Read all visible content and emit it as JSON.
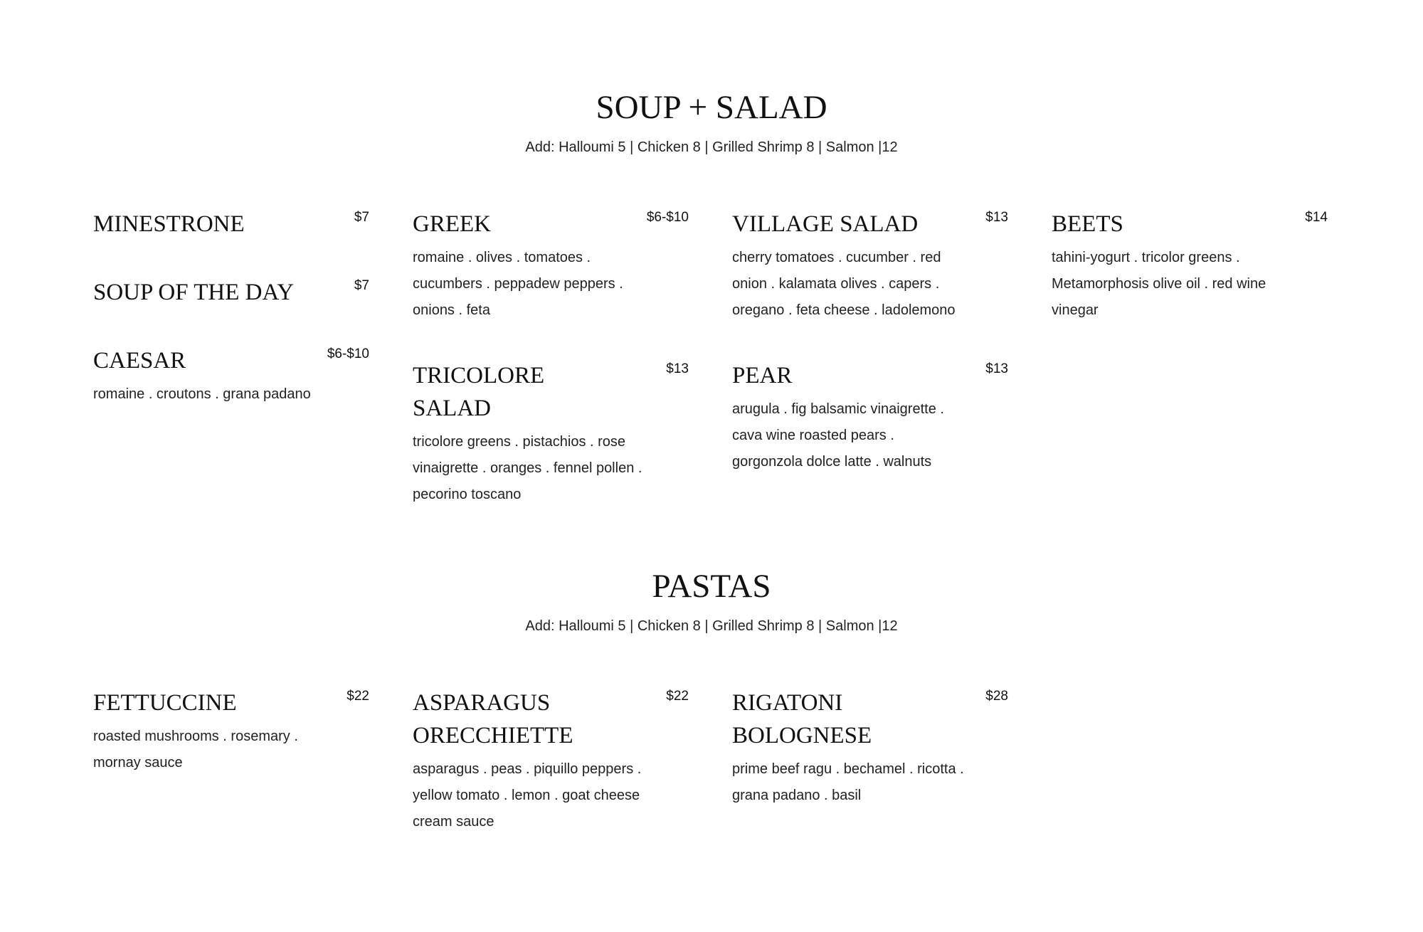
{
  "sections": [
    {
      "title": "SOUP + SALAD",
      "subtitle": "Add: Halloumi 5 | Chicken 8 | Grilled Shrimp 8 | Salmon |12",
      "columns": [
        [
          {
            "name": "MINESTRONE",
            "price": "$7",
            "desc": ""
          },
          {
            "name": "SOUP OF THE DAY",
            "price": "$7",
            "desc": ""
          },
          {
            "name": "CAESAR",
            "price": "$6-$10",
            "desc": "romaine . croutons . grana padano"
          }
        ],
        [
          {
            "name": "GREEK",
            "price": "$6-$10",
            "desc": "romaine . olives . tomatoes . cucumbers . peppadew peppers . onions . feta"
          },
          {
            "name": "TRICOLORE SALAD",
            "price": "$13",
            "desc": "tricolore greens . pistachios . rose vinaigrette . oranges . fennel pollen . pecorino toscano"
          }
        ],
        [
          {
            "name": "VILLAGE SALAD",
            "price": "$13",
            "desc": "cherry tomatoes . cucumber . red onion . kalamata olives . capers . oregano . feta cheese . ladolemono"
          },
          {
            "name": "PEAR",
            "price": "$13",
            "desc": "arugula . fig balsamic vinaigrette . cava wine roasted pears . gorgonzola dolce latte . walnuts"
          }
        ],
        [
          {
            "name": "BEETS",
            "price": "$14",
            "desc": "tahini-yogurt . tricolor greens . Metamorphosis olive oil . red wine vinegar"
          }
        ]
      ]
    },
    {
      "title": "PASTAS",
      "subtitle": "Add: Halloumi 5 | Chicken 8 | Grilled Shrimp 8 | Salmon |12",
      "columns": [
        [
          {
            "name": "FETTUCCINE",
            "price": "$22",
            "desc": "roasted mushrooms . rosemary . mornay sauce"
          }
        ],
        [
          {
            "name": "ASPARAGUS ORECCHIETTE",
            "price": "$22",
            "desc": "asparagus . peas . piquillo peppers . yellow tomato . lemon . goat cheese cream sauce"
          }
        ],
        [
          {
            "name": "RIGATONI BOLOGNESE",
            "price": "$28",
            "desc": "prime beef ragu . bechamel . ricotta . grana padano . basil"
          }
        ]
      ]
    }
  ]
}
